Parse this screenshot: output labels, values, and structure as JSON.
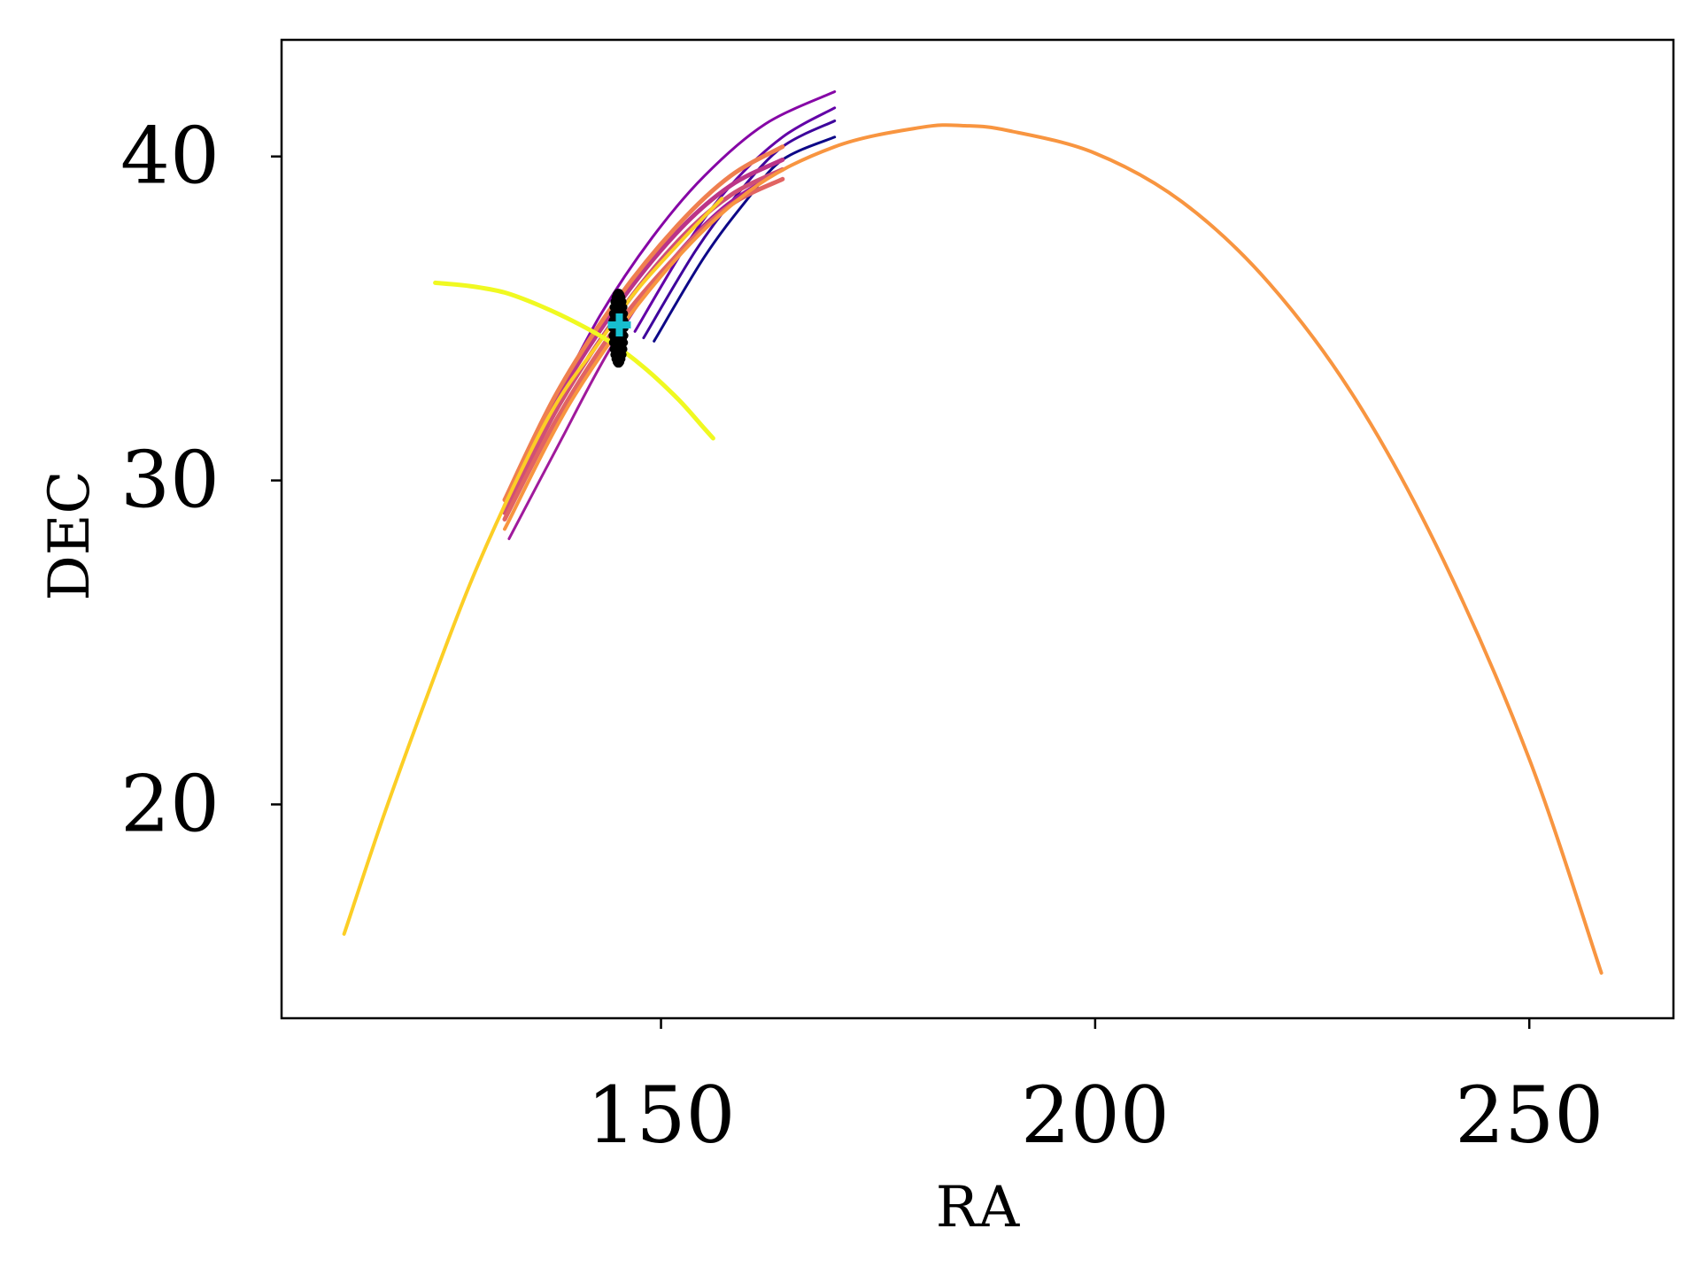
{
  "chart_data": {
    "type": "line",
    "title": "",
    "xlabel": "RA",
    "ylabel": "DEC",
    "xlim": [
      106.3,
      266.6
    ],
    "ylim": [
      13.4,
      43.6
    ],
    "xticks": [
      150,
      200,
      250
    ],
    "yticks": [
      20,
      30,
      40
    ],
    "grid": false,
    "legend": "none",
    "series": [
      {
        "color": "#0d0887",
        "width": 3,
        "points": [
          [
            149.2,
            34.3
          ],
          [
            155.0,
            36.9
          ],
          [
            160.0,
            38.7
          ],
          [
            164.0,
            39.9
          ],
          [
            170.0,
            40.6
          ]
        ]
      },
      {
        "color": "#3e049c",
        "width": 3,
        "points": [
          [
            148.0,
            34.4
          ],
          [
            154.0,
            37.1
          ],
          [
            159.0,
            38.9
          ],
          [
            164.0,
            40.3
          ],
          [
            170.0,
            41.1
          ]
        ]
      },
      {
        "color": "#6300a7",
        "width": 3,
        "points": [
          [
            147.0,
            34.6
          ],
          [
            153.0,
            37.3
          ],
          [
            158.0,
            39.1
          ],
          [
            164.0,
            40.6
          ],
          [
            170.0,
            41.5
          ]
        ]
      },
      {
        "color": "#8606a6",
        "width": 3,
        "points": [
          [
            137.5,
            32.3
          ],
          [
            143.0,
            35.1
          ],
          [
            149.0,
            37.5
          ],
          [
            155.0,
            39.4
          ],
          [
            162.0,
            41.0
          ],
          [
            170.0,
            42.0
          ]
        ]
      },
      {
        "color": "#a01a9c",
        "width": 3,
        "points": [
          [
            132.5,
            28.2
          ],
          [
            138.0,
            31.0
          ],
          [
            144.0,
            34.0
          ],
          [
            150.0,
            36.4
          ],
          [
            157.0,
            38.4
          ],
          [
            164.0,
            39.6
          ]
        ]
      },
      {
        "color": "#bb3488",
        "width": 5,
        "points": [
          [
            132.0,
            29.2
          ],
          [
            138.0,
            32.5
          ],
          [
            145.0,
            35.4
          ],
          [
            152.0,
            37.7
          ],
          [
            158.0,
            39.1
          ],
          [
            164.0,
            39.9
          ]
        ]
      },
      {
        "color": "#d04f76",
        "width": 5,
        "points": [
          [
            132.0,
            29.0
          ],
          [
            138.0,
            32.2
          ],
          [
            145.0,
            35.1
          ],
          [
            152.0,
            37.4
          ],
          [
            158.0,
            38.8
          ],
          [
            164.0,
            39.6
          ]
        ]
      },
      {
        "color": "#e16462",
        "width": 5,
        "points": [
          [
            132.0,
            28.8
          ],
          [
            138.0,
            31.9
          ],
          [
            145.0,
            34.8
          ],
          [
            152.0,
            37.0
          ],
          [
            158.0,
            38.5
          ],
          [
            164.0,
            39.3
          ]
        ]
      },
      {
        "color": "#ef7f4f",
        "width": 5,
        "points": [
          [
            132.0,
            29.4
          ],
          [
            138.0,
            32.7
          ],
          [
            145.0,
            35.6
          ],
          [
            152.0,
            37.9
          ],
          [
            158.0,
            39.4
          ],
          [
            164.0,
            40.3
          ]
        ]
      },
      {
        "color": "#f89540",
        "width": 4,
        "points": [
          [
            132.0,
            28.5
          ],
          [
            140.0,
            32.6
          ],
          [
            150.0,
            36.3
          ],
          [
            160.0,
            38.9
          ],
          [
            170.0,
            40.3
          ],
          [
            180.0,
            40.9
          ],
          [
            185.0,
            40.95
          ],
          [
            190.0,
            40.8
          ],
          [
            200.0,
            40.1
          ],
          [
            210.0,
            38.6
          ],
          [
            220.0,
            36.1
          ],
          [
            230.0,
            32.5
          ],
          [
            240.0,
            27.6
          ],
          [
            250.0,
            21.4
          ],
          [
            258.3,
            14.8
          ]
        ]
      },
      {
        "color": "#fcce25",
        "width": 4,
        "points": [
          [
            113.5,
            16.0
          ],
          [
            118.0,
            19.6
          ],
          [
            123.0,
            23.3
          ],
          [
            128.0,
            26.8
          ],
          [
            133.0,
            29.8
          ],
          [
            138.0,
            32.4
          ],
          [
            143.0,
            34.3
          ],
          [
            147.0,
            35.8
          ],
          [
            152.0,
            37.3
          ],
          [
            157.0,
            38.7
          ]
        ]
      },
      {
        "color": "#f0f921",
        "width": 5,
        "points": [
          [
            124.0,
            36.1
          ],
          [
            128.0,
            36.0
          ],
          [
            132.0,
            35.8
          ],
          [
            136.0,
            35.4
          ],
          [
            140.0,
            34.9
          ],
          [
            144.0,
            34.3
          ],
          [
            148.0,
            33.5
          ],
          [
            152.0,
            32.5
          ],
          [
            155.0,
            31.6
          ],
          [
            156.0,
            31.3
          ]
        ]
      }
    ],
    "markers": [
      {
        "type": "black-cluster",
        "color": "#000000",
        "center": [
          145.1,
          34.7
        ],
        "spread": [
          0.7,
          1.1
        ]
      },
      {
        "type": "plus",
        "color": "#17becf",
        "x": 145.2,
        "y": 34.8
      }
    ]
  }
}
